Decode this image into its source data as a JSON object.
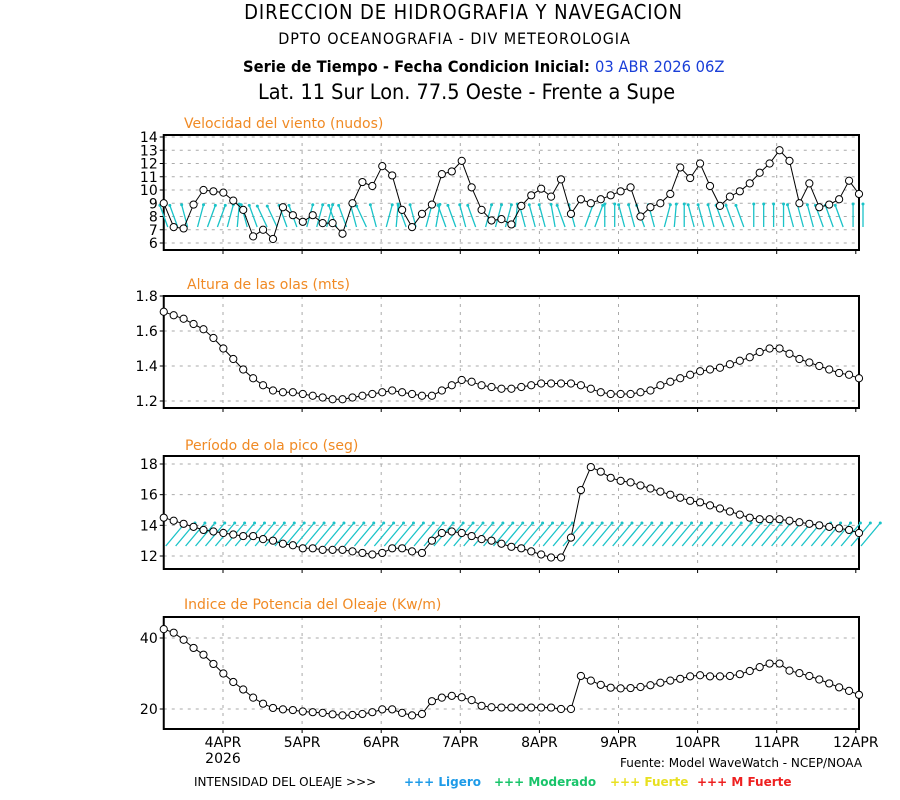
{
  "header": {
    "line1": "DIRECCION DE HIDROGRAFIA Y NAVEGACION",
    "line2": "DPTO OCEANOGRAFIA - DIV METEOROLOGIA",
    "line3_prefix": "Serie de Tiempo - Fecha Condicion Inicial:",
    "line3_date": "03 ABR 2026 06Z",
    "line4": "Lat. 11 Sur  Lon. 77.5 Oeste - Frente a Supe"
  },
  "colors": {
    "panel_title": "#f08a24",
    "arrow": "#19c3c8",
    "date": "#1a3fd8",
    "ligero": "#1e9be8",
    "moderado": "#18c46a",
    "fuerte": "#e8e020",
    "mfuerte": "#ee2020"
  },
  "footer": {
    "source": "Fuente: Model WaveWatch - NCEP/NOAA",
    "intensity_label": "INTENSIDAD DEL OLEAJE >>>",
    "legend": [
      {
        "symbol": "+++",
        "label": "Ligero",
        "color": "#1e9be8"
      },
      {
        "symbol": "+++",
        "label": "Moderado",
        "color": "#18c46a"
      },
      {
        "symbol": "+++",
        "label": "Fuerte",
        "color": "#e8e020"
      },
      {
        "symbol": "+++",
        "label": "M Fuerte",
        "color": "#ee2020"
      }
    ]
  },
  "chart_data": [
    {
      "type": "line",
      "title": "Velocidad del viento (nudos)",
      "x_start": "03APR2026 06Z",
      "x_step_hours": 3,
      "xticks": [
        "4APR",
        "5APR",
        "6APR",
        "7APR",
        "8APR",
        "9APR",
        "10APR",
        "11APR",
        "12APR"
      ],
      "xtick_year": "2026",
      "yticks": [
        "6",
        "7",
        "8",
        "9",
        "10",
        "11",
        "12",
        "13",
        "14"
      ],
      "ylim": [
        5.7,
        14
      ],
      "direction_arrows": true,
      "values": [
        9.0,
        7.2,
        7.1,
        8.9,
        10.0,
        9.9,
        9.8,
        9.2,
        8.5,
        6.5,
        7.0,
        6.3,
        8.7,
        8.1,
        7.6,
        8.1,
        7.5,
        7.5,
        6.7,
        9.0,
        10.6,
        10.3,
        11.8,
        11.1,
        8.5,
        7.2,
        8.2,
        8.9,
        11.2,
        11.4,
        12.2,
        10.2,
        8.5,
        7.7,
        7.8,
        7.4,
        8.8,
        9.6,
        10.1,
        9.5,
        10.8,
        8.2,
        9.3,
        9.0,
        9.3,
        9.6,
        9.9,
        10.2,
        8.0,
        8.7,
        9.0,
        9.7,
        11.7,
        10.9,
        12.0,
        10.3,
        8.8,
        9.5,
        9.9,
        10.5,
        11.3,
        12.0,
        13.0,
        12.2,
        9.0,
        10.5,
        8.7,
        8.9,
        9.3,
        10.7,
        9.7
      ],
      "arrow_angles_deg": [
        -20,
        -20,
        -15,
        15,
        20,
        20,
        15,
        5,
        -15,
        -20,
        -25,
        -25,
        -20,
        -20,
        15,
        15,
        15,
        -20,
        -20,
        -15,
        -25,
        -15,
        15,
        5,
        -20,
        -15,
        15,
        10,
        -20,
        -20,
        -15,
        -20,
        15,
        15,
        15,
        5,
        -15,
        -15,
        -15,
        -10,
        -20,
        -15,
        20,
        20,
        0,
        0,
        -15,
        -15,
        -20,
        -15,
        15,
        5,
        0,
        -15,
        -15,
        -15,
        -20,
        -20,
        -20,
        0,
        0,
        0,
        0,
        -15,
        -15,
        -15,
        -20,
        -20,
        -20,
        0,
        0
      ]
    },
    {
      "type": "line",
      "title": "Altura de las olas (mts)",
      "yticks": [
        "1.2",
        "1.4",
        "1.6",
        "1.8"
      ],
      "ylim": [
        1.16,
        1.8
      ],
      "values": [
        1.71,
        1.69,
        1.67,
        1.64,
        1.61,
        1.56,
        1.5,
        1.44,
        1.38,
        1.33,
        1.29,
        1.26,
        1.25,
        1.25,
        1.24,
        1.23,
        1.22,
        1.21,
        1.21,
        1.22,
        1.23,
        1.24,
        1.25,
        1.26,
        1.25,
        1.24,
        1.23,
        1.23,
        1.26,
        1.29,
        1.32,
        1.31,
        1.29,
        1.28,
        1.27,
        1.27,
        1.28,
        1.29,
        1.3,
        1.3,
        1.3,
        1.3,
        1.29,
        1.27,
        1.25,
        1.24,
        1.24,
        1.24,
        1.25,
        1.26,
        1.29,
        1.31,
        1.33,
        1.35,
        1.37,
        1.38,
        1.39,
        1.41,
        1.43,
        1.45,
        1.48,
        1.5,
        1.5,
        1.47,
        1.44,
        1.42,
        1.4,
        1.38,
        1.36,
        1.35,
        1.33
      ]
    },
    {
      "type": "line",
      "title": "Período de ola pico (seg)",
      "yticks": [
        "12",
        "14",
        "16",
        "18"
      ],
      "ylim": [
        11.1,
        18.5
      ],
      "direction_arrows": true,
      "values": [
        14.5,
        14.3,
        14.1,
        13.9,
        13.7,
        13.6,
        13.5,
        13.4,
        13.3,
        13.3,
        13.1,
        13.0,
        12.8,
        12.7,
        12.5,
        12.5,
        12.4,
        12.4,
        12.4,
        12.3,
        12.2,
        12.1,
        12.2,
        12.5,
        12.5,
        12.3,
        12.2,
        13.0,
        13.5,
        13.6,
        13.5,
        13.3,
        13.1,
        13.0,
        12.8,
        12.6,
        12.5,
        12.3,
        12.1,
        11.9,
        11.9,
        13.2,
        16.3,
        17.8,
        17.5,
        17.1,
        16.9,
        16.8,
        16.6,
        16.4,
        16.2,
        16.0,
        15.8,
        15.6,
        15.5,
        15.3,
        15.1,
        14.9,
        14.7,
        14.5,
        14.4,
        14.4,
        14.4,
        14.3,
        14.2,
        14.1,
        14.0,
        13.9,
        13.8,
        13.7,
        13.5
      ],
      "arrow_angles_deg": 40
    },
    {
      "type": "line",
      "title": "Indice de Potencia del Oleaje (Kw/m)",
      "yticks": [
        "20",
        "40"
      ],
      "ylim": [
        14,
        46
      ],
      "values": [
        42.5,
        41.5,
        39.5,
        37.2,
        35.3,
        32.7,
        30.0,
        27.6,
        25.5,
        23.2,
        21.5,
        20.3,
        19.9,
        19.7,
        19.3,
        19.1,
        18.9,
        18.5,
        18.2,
        18.3,
        18.6,
        19.1,
        19.9,
        19.9,
        18.9,
        18.2,
        18.6,
        22.2,
        23.2,
        23.7,
        23.3,
        22.5,
        20.9,
        20.5,
        20.4,
        20.4,
        20.4,
        20.4,
        20.4,
        20.4,
        20.0,
        20.0,
        29.3,
        28.0,
        26.8,
        26.0,
        25.8,
        25.9,
        26.2,
        26.7,
        27.4,
        28.0,
        28.5,
        29.2,
        29.5,
        29.2,
        29.2,
        29.3,
        29.8,
        30.7,
        31.8,
        32.8,
        32.8,
        30.8,
        30.1,
        29.3,
        28.3,
        27.2,
        26.1,
        25.1,
        24.0
      ]
    }
  ]
}
